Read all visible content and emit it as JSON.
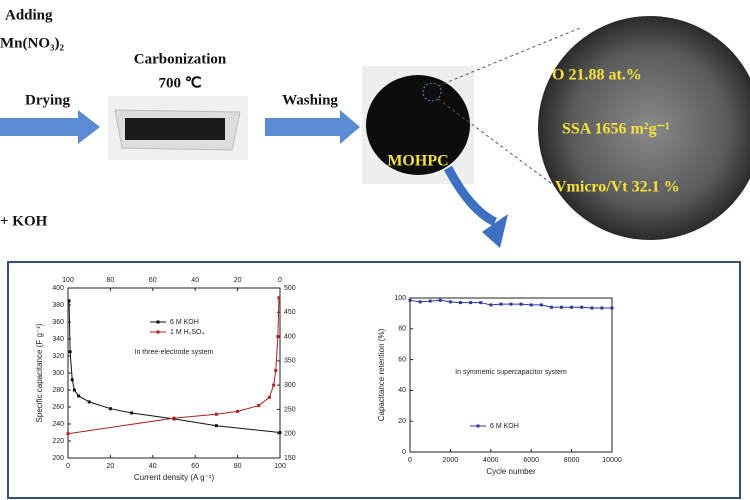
{
  "diagram": {
    "adding": "Adding",
    "reagent": "Mn(NO₃)₂",
    "drying": "Drying",
    "carbonization": "Carbonization",
    "temperature": "700 ℃",
    "washing": "Washing",
    "product": "MOHPC",
    "properties": [
      "O  21.88 at.%",
      "SSA  1656 m²g⁻¹",
      "Vmicro/Vt  32.1 %"
    ],
    "koh": "+ KOH"
  },
  "chart_data": [
    {
      "type": "line",
      "xlabel": "Current density (A g⁻¹)",
      "ylabel": "Specific capacitance (F g⁻¹)",
      "annotation": "In three-electrode system",
      "xlim": [
        0,
        100
      ],
      "xticks": [
        0,
        20,
        40,
        60,
        80,
        100
      ],
      "x2lim": [
        100,
        0
      ],
      "x2ticks": [
        100,
        80,
        60,
        40,
        20,
        0
      ],
      "ylim": [
        200,
        400
      ],
      "yticks": [
        200,
        220,
        240,
        260,
        280,
        300,
        320,
        340,
        360,
        380,
        400
      ],
      "y2lim": [
        150,
        500
      ],
      "y2ticks": [
        150,
        200,
        250,
        300,
        350,
        400,
        450,
        500
      ],
      "series": [
        {
          "name": "6 M KOH",
          "color": "#111111",
          "x": [
            0.5,
            1,
            2,
            3,
            5,
            10,
            20,
            30,
            50,
            70,
            100
          ],
          "values": [
            385,
            325,
            292,
            280,
            273,
            266,
            258,
            253,
            246,
            238,
            230
          ]
        },
        {
          "name": "1 M H₂SO₄",
          "color": "#b02020",
          "axis": "y2",
          "xaxis": "x2",
          "x": [
            100,
            50,
            30,
            20,
            10,
            5,
            3,
            2,
            1,
            0.5
          ],
          "values": [
            200,
            232,
            240,
            246,
            258,
            275,
            300,
            330,
            400,
            480
          ]
        }
      ]
    },
    {
      "type": "line",
      "xlabel": "Cycle number",
      "ylabel": "Capacitance retention (%)",
      "annotation": "In symmetric supercapacitor system",
      "xlim": [
        0,
        10000
      ],
      "xticks": [
        0,
        2000,
        4000,
        6000,
        8000,
        10000
      ],
      "ylim": [
        0,
        100
      ],
      "yticks": [
        0,
        20,
        40,
        60,
        80,
        100
      ],
      "series": [
        {
          "name": "6 M KOH",
          "color": "#2a3aa0",
          "x": [
            0,
            500,
            1000,
            1500,
            2000,
            2500,
            3000,
            3500,
            4000,
            4500,
            5000,
            5500,
            6000,
            6500,
            7000,
            7500,
            8000,
            8500,
            9000,
            9500,
            10000
          ],
          "values": [
            98.5,
            97.5,
            98,
            98.5,
            97.5,
            97,
            97,
            97,
            95.5,
            96,
            96,
            96,
            95.5,
            95.5,
            94,
            94,
            94,
            94,
            93.5,
            93.5,
            93.5
          ]
        }
      ]
    }
  ]
}
